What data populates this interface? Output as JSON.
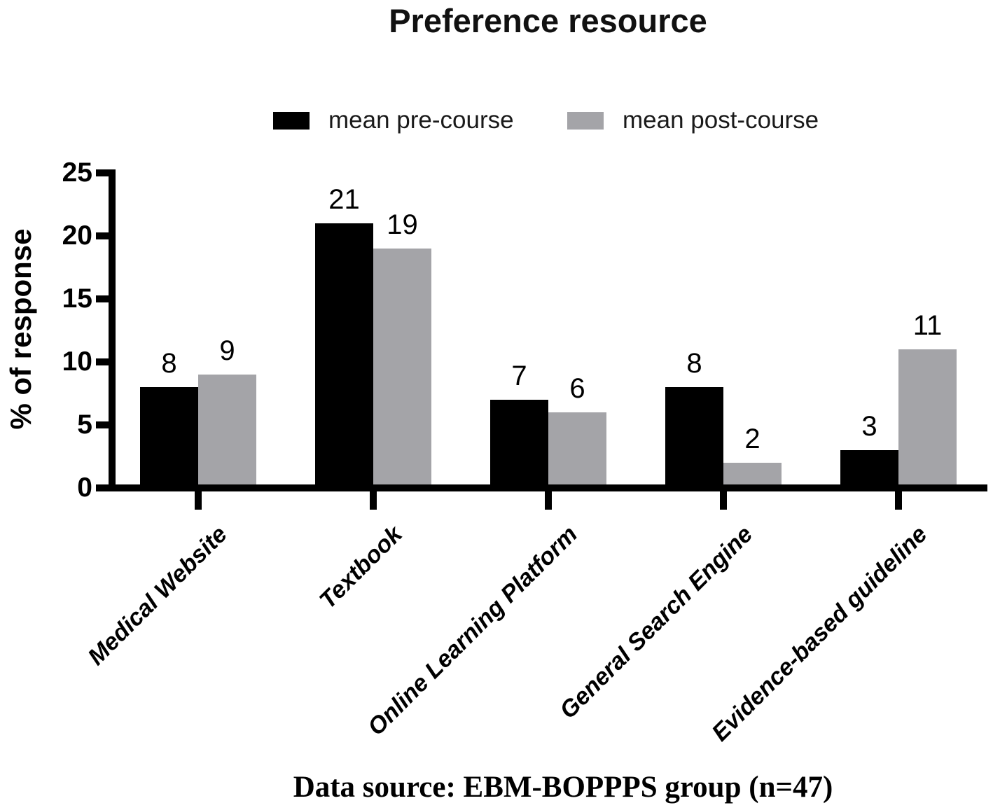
{
  "title": "Preference resource",
  "caption": "Data source: EBM-BOPPPS group (n=47)",
  "colors": {
    "pre_course": "#000000",
    "post_course": "#a4a4a8",
    "axis": "#000000",
    "background": "#ffffff"
  },
  "chart_data": {
    "type": "bar",
    "title": "Preference resource",
    "categories": [
      "Medical Website",
      "Textbook",
      "Online Learning Platform",
      "General Search Engine",
      "Evidence-based guideline"
    ],
    "series": [
      {
        "name": "mean pre-course",
        "color": "#000000",
        "values": [
          8,
          21,
          7,
          8,
          3
        ]
      },
      {
        "name": "mean post-course",
        "color": "#a4a4a8",
        "values": [
          9,
          19,
          6,
          2,
          11
        ]
      }
    ],
    "xlabel": "Data source: EBM-BOPPPS group (n=47)",
    "ylabel": "% of response",
    "ylim": [
      0,
      25
    ],
    "yticks": [
      0,
      5,
      10,
      15,
      20,
      25
    ],
    "grid": false,
    "legend_position": "top",
    "bar_value_labels_shown": true
  }
}
